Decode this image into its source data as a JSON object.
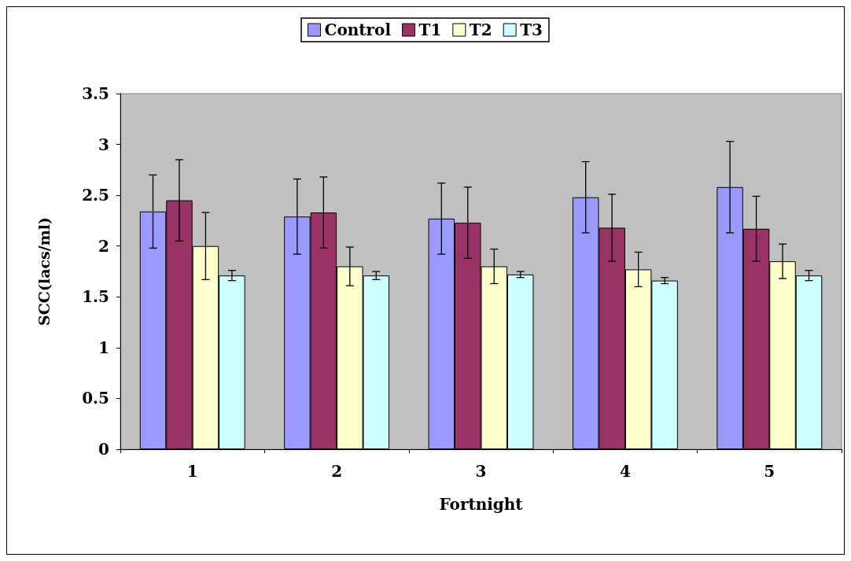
{
  "chart_data": {
    "type": "bar",
    "xlabel": "Fortnight",
    "ylabel": "SCC(lacs/ml)",
    "categories": [
      "1",
      "2",
      "3",
      "4",
      "5"
    ],
    "series": [
      {
        "name": "Control",
        "color": "#9999ff",
        "values": [
          2.34,
          2.29,
          2.27,
          2.48,
          2.58
        ],
        "errors": [
          0.36,
          0.37,
          0.35,
          0.35,
          0.45
        ]
      },
      {
        "name": "T1",
        "color": "#993366",
        "values": [
          2.45,
          2.33,
          2.23,
          2.18,
          2.17
        ],
        "errors": [
          0.4,
          0.35,
          0.35,
          0.33,
          0.32
        ]
      },
      {
        "name": "T2",
        "color": "#ffffcc",
        "values": [
          2.0,
          1.8,
          1.8,
          1.77,
          1.85
        ],
        "errors": [
          0.33,
          0.19,
          0.17,
          0.17,
          0.17
        ]
      },
      {
        "name": "T3",
        "color": "#ccffff",
        "values": [
          1.71,
          1.71,
          1.72,
          1.66,
          1.71
        ],
        "errors": [
          0.05,
          0.04,
          0.03,
          0.03,
          0.05
        ]
      }
    ],
    "ylim": [
      0,
      3.5
    ],
    "yticks": [
      0,
      0.5,
      1,
      1.5,
      2,
      2.5,
      3,
      3.5
    ],
    "legend": "top"
  }
}
